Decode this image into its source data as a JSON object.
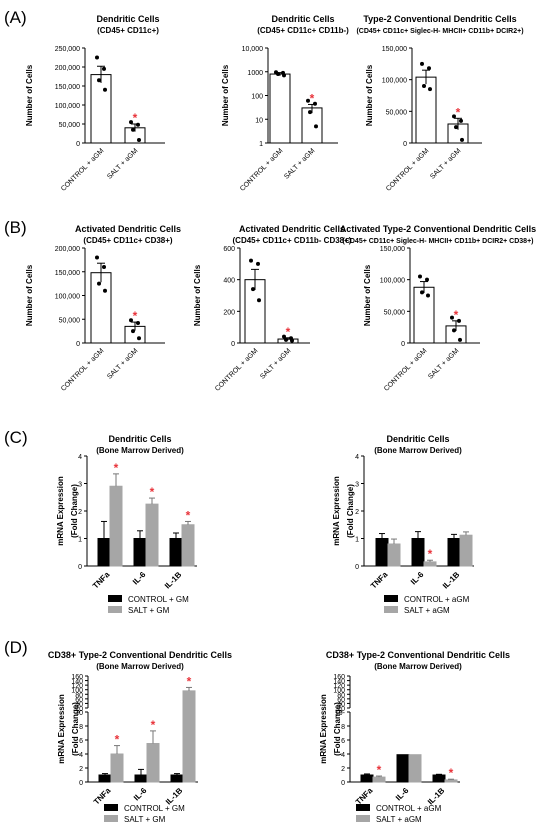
{
  "figure": {
    "panels": [
      {
        "letter": "(A)"
      },
      {
        "letter": "(B)"
      },
      {
        "letter": "(C)"
      },
      {
        "letter": "(D)"
      }
    ]
  },
  "colors": {
    "control": "#000000",
    "salt": "#a6a6a6",
    "star": "#e8333a",
    "open_bar": "#ffffff"
  },
  "chart_data": [
    {
      "id": "A1",
      "type": "bar",
      "title": "Dendritic Cells",
      "subtitle": "(CD45+ CD11c+)",
      "ylabel": "Number of Cells",
      "xlabel": "",
      "scale": "linear",
      "ylim": [
        0,
        250000
      ],
      "ticks": [
        0,
        50000,
        100000,
        150000,
        200000,
        250000
      ],
      "tick_labels": [
        "0",
        "50,000",
        "100,000",
        "150,000",
        "200,000",
        "250,000"
      ],
      "categories": [
        "CONTROL + aGM",
        "SALT + aGM"
      ],
      "values": [
        180000,
        40000
      ],
      "errors": [
        22000,
        10000
      ],
      "points": [
        [
          225000,
          195000,
          165000,
          140000
        ],
        [
          55000,
          48000,
          35000,
          8000
        ]
      ],
      "significant": [
        false,
        true
      ],
      "fill": "open"
    },
    {
      "id": "A2",
      "type": "bar",
      "title": "Dendritic Cells",
      "subtitle": "(CD45+ CD11c+ CD11b-)",
      "ylabel": "Number of Cells",
      "xlabel": "",
      "scale": "log",
      "ylim": [
        1,
        10000
      ],
      "ticks": [
        1,
        10,
        100,
        1000,
        10000
      ],
      "tick_labels": [
        "1",
        "10",
        "100",
        "1000",
        "10,000"
      ],
      "categories": [
        "CONTROL + aGM",
        "SALT + aGM"
      ],
      "values": [
        800,
        30
      ],
      "errors": [
        120,
        12
      ],
      "points": [
        [
          950,
          900,
          800,
          700
        ],
        [
          60,
          45,
          20,
          5
        ]
      ],
      "significant": [
        false,
        true
      ],
      "fill": "open"
    },
    {
      "id": "A3",
      "type": "bar",
      "title": "Type-2 Conventional Dendritic Cells",
      "subtitle": "(CD45+ CD11c+ Siglec-H- MHCII+ CD11b+ DCIR2+)",
      "ylabel": "Number of Cells",
      "xlabel": "",
      "scale": "linear",
      "ylim": [
        0,
        150000
      ],
      "ticks": [
        0,
        50000,
        100000,
        150000
      ],
      "tick_labels": [
        "0",
        "50,000",
        "100,000",
        "150,000"
      ],
      "categories": [
        "CONTROL + aGM",
        "SALT + aGM"
      ],
      "values": [
        104000,
        30000
      ],
      "errors": [
        11000,
        9000
      ],
      "points": [
        [
          125000,
          118000,
          90000,
          85000
        ],
        [
          42000,
          35000,
          25000,
          5000
        ]
      ],
      "significant": [
        false,
        true
      ],
      "fill": "open"
    },
    {
      "id": "B1",
      "type": "bar",
      "title": "Activated Dendritic Cells",
      "subtitle": "(CD45+ CD11c+ CD38+)",
      "ylabel": "Number of  Cells",
      "xlabel": "",
      "scale": "linear",
      "ylim": [
        0,
        200000
      ],
      "ticks": [
        0,
        50000,
        100000,
        150000,
        200000
      ],
      "tick_labels": [
        "0",
        "50,000",
        "100,000",
        "150,000",
        "200,000"
      ],
      "categories": [
        "CONTROL + aGM",
        "SALT + aGM"
      ],
      "values": [
        148000,
        35000
      ],
      "errors": [
        20000,
        9000
      ],
      "points": [
        [
          180000,
          160000,
          125000,
          110000
        ],
        [
          48000,
          42000,
          25000,
          10000
        ]
      ],
      "significant": [
        false,
        true
      ],
      "fill": "open"
    },
    {
      "id": "B2",
      "type": "bar",
      "title": "Activated Dendritic Cells",
      "subtitle": "(CD45+ CD11c+ CD11b- CD38+)",
      "ylabel": "Number of  Cells",
      "xlabel": "",
      "scale": "linear",
      "ylim": [
        0,
        600
      ],
      "ticks": [
        0,
        200,
        400,
        600
      ],
      "tick_labels": [
        "0",
        "200",
        "400",
        "600"
      ],
      "categories": [
        "CONTROL + aGM",
        "SALT + aGM"
      ],
      "values": [
        400,
        25
      ],
      "errors": [
        65,
        8
      ],
      "points": [
        [
          520,
          500,
          340,
          270
        ],
        [
          40,
          30,
          20,
          15
        ]
      ],
      "significant": [
        false,
        true
      ],
      "fill": "open"
    },
    {
      "id": "B3",
      "type": "bar",
      "title": "Activated Type-2 Conventional Dendritic Cells",
      "subtitle": "(CD45+ CD11c+ Siglec-H- MHCII+ CD11b+ DCIR2+ CD38+)",
      "ylabel": "Number of  Cells",
      "xlabel": "",
      "scale": "linear",
      "ylim": [
        0,
        150000
      ],
      "ticks": [
        0,
        50000,
        100000,
        150000
      ],
      "tick_labels": [
        "0",
        "50,000",
        "100,000",
        "150,000"
      ],
      "categories": [
        "CONTROL + aGM",
        "SALT + aGM"
      ],
      "values": [
        88000,
        27000
      ],
      "errors": [
        9000,
        8000
      ],
      "points": [
        [
          105000,
          100000,
          80000,
          75000
        ],
        [
          40000,
          35000,
          20000,
          5000
        ]
      ],
      "significant": [
        false,
        true
      ],
      "fill": "open"
    },
    {
      "id": "C1",
      "type": "bar",
      "title": "Dendritic Cells",
      "subtitle": "(Bone Marrow Derived)",
      "ylabel": "mRNA Expression",
      "ylabel2": "(Fold Change)",
      "xlabel": "",
      "scale": "linear",
      "ylim": [
        0,
        4
      ],
      "ticks": [
        0,
        1,
        2,
        3,
        4
      ],
      "tick_labels": [
        "0",
        "1",
        "2",
        "3",
        "4"
      ],
      "categories": [
        "TNFa",
        "IL-6",
        "IL-1B"
      ],
      "series": [
        {
          "name": "CONTROL + GM",
          "values": [
            1.0,
            1.0,
            1.0
          ],
          "errors": [
            0.62,
            0.28,
            0.2
          ]
        },
        {
          "name": "SALT + GM",
          "values": [
            2.9,
            2.25,
            1.5
          ],
          "errors": [
            0.45,
            0.22,
            0.12
          ]
        }
      ],
      "significant": [
        [
          false,
          false,
          false
        ],
        [
          true,
          true,
          true
        ]
      ],
      "legend": "bottom"
    },
    {
      "id": "C2",
      "type": "bar",
      "title": "Dendritic Cells",
      "subtitle": "(Bone Marrow Derived)",
      "ylabel": "mRNA Expression",
      "ylabel2": "(Fold Change)",
      "xlabel": "",
      "scale": "linear",
      "ylim": [
        0,
        4
      ],
      "ticks": [
        0,
        1,
        2,
        3,
        4
      ],
      "tick_labels": [
        "0",
        "1",
        "2",
        "3",
        "4"
      ],
      "categories": [
        "TNFa",
        "IL-6",
        "IL-1B"
      ],
      "series": [
        {
          "name": "CONTROL + aGM",
          "values": [
            1.0,
            1.0,
            1.0
          ],
          "errors": [
            0.18,
            0.25,
            0.15
          ]
        },
        {
          "name": "SALT + aGM",
          "values": [
            0.8,
            0.15,
            1.12
          ],
          "errors": [
            0.18,
            0.06,
            0.12
          ]
        }
      ],
      "significant": [
        [
          false,
          false,
          false
        ],
        [
          false,
          true,
          false
        ]
      ],
      "legend": "bottom"
    },
    {
      "id": "D1",
      "type": "bar",
      "title": "CD38+ Type-2 Conventional Dendritic Cells",
      "subtitle": "(Bone Marrow Derived)",
      "ylabel": "mRNA Expression",
      "ylabel2": "(Fold Change)",
      "xlabel": "",
      "scale": "broken",
      "segments": [
        {
          "range": [
            0,
            10
          ],
          "ticks": [
            0,
            2,
            4,
            6,
            8,
            10
          ],
          "tick_labels": [
            "0",
            "2",
            "4",
            "6",
            "8",
            "10"
          ]
        },
        {
          "range": [
            20,
            160
          ],
          "ticks": [
            20,
            40,
            60,
            80,
            100,
            120,
            140,
            160
          ],
          "tick_labels": [
            "20",
            "40",
            "60",
            "80",
            "100",
            "120",
            "140",
            "160"
          ]
        }
      ],
      "categories": [
        "TNFa",
        "IL-6",
        "IL-1B"
      ],
      "series": [
        {
          "name": "CONTROL + GM",
          "values": [
            1.0,
            1.0,
            1.0
          ],
          "errors": [
            0.2,
            0.8,
            0.2
          ]
        },
        {
          "name": "SALT + GM",
          "values": [
            4.0,
            5.5,
            95
          ],
          "errors": [
            1.2,
            1.8,
            15
          ]
        }
      ],
      "significant": [
        [
          false,
          false,
          false
        ],
        [
          true,
          true,
          true
        ]
      ],
      "legend": "bottom"
    },
    {
      "id": "D2",
      "type": "bar",
      "title": "CD38+ Type-2 Conventional Dendritic Cells",
      "subtitle": "(Bone Marrow Derived)",
      "ylabel": "mRNA Expression",
      "ylabel2": "(Fold Change)",
      "xlabel": "",
      "scale": "broken",
      "segments": [
        {
          "range": [
            0,
            10
          ],
          "ticks": [
            0,
            2,
            4,
            6,
            8,
            10
          ],
          "tick_labels": [
            "0",
            "2",
            "4",
            "6",
            "8",
            "10-"
          ]
        },
        {
          "range": [
            20,
            160
          ],
          "ticks": [
            20,
            40,
            60,
            80,
            100,
            120,
            140,
            160
          ],
          "tick_labels": [
            "20",
            "40",
            "60",
            "80",
            "100",
            "120",
            "140",
            "160"
          ]
        }
      ],
      "categories": [
        "TNFa",
        "IL-6",
        "IL-1B"
      ],
      "series": [
        {
          "name": "CONTROL + aGM",
          "values": [
            1.0,
            3.9,
            1.0
          ],
          "errors": [
            0.15,
            0,
            0.1
          ]
        },
        {
          "name": "SALT + aGM",
          "values": [
            0.7,
            3.9,
            0.3
          ],
          "errors": [
            0.15,
            0,
            0.1
          ]
        }
      ],
      "significant": [
        [
          false,
          false,
          false
        ],
        [
          true,
          false,
          true
        ]
      ],
      "legend": "bottom"
    }
  ]
}
